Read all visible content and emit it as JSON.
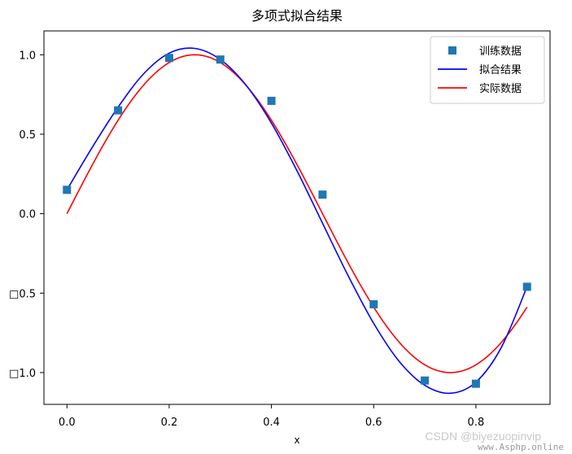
{
  "chart_data": {
    "type": "line",
    "title": "多项式拟合结果",
    "xlabel": "x",
    "ylabel": "",
    "xlim": [
      -0.045,
      0.945
    ],
    "ylim": [
      -1.2,
      1.15
    ],
    "xticks": [
      0.0,
      0.2,
      0.4,
      0.6,
      0.8
    ],
    "xtick_labels": [
      "0.0",
      "0.2",
      "0.4",
      "0.6",
      "0.8"
    ],
    "yticks": [
      1.0,
      0.5,
      0.0,
      -0.5,
      -1.0
    ],
    "ytick_labels": [
      "1.0",
      "0.5",
      "0.0",
      "□0.5",
      "□1.0"
    ],
    "legend_position": "top-right",
    "grid": false,
    "series": [
      {
        "name": "训练数据",
        "kind": "scatter",
        "marker": "square",
        "color": "#1f77b4",
        "x": [
          0.0,
          0.1,
          0.2,
          0.3,
          0.4,
          0.5,
          0.6,
          0.7,
          0.8,
          0.9
        ],
        "y": [
          0.15,
          0.65,
          0.98,
          0.97,
          0.71,
          0.12,
          -0.57,
          -1.05,
          -1.07,
          -0.46
        ]
      },
      {
        "name": "拟合结果",
        "kind": "line",
        "color": "#0000ff",
        "x": [
          0.0,
          0.05,
          0.1,
          0.15,
          0.2,
          0.25,
          0.3,
          0.35,
          0.4,
          0.45,
          0.5,
          0.55,
          0.6,
          0.65,
          0.7,
          0.75,
          0.8,
          0.85,
          0.9
        ],
        "y": [
          0.15,
          0.42,
          0.67,
          0.88,
          1.01,
          1.04,
          0.97,
          0.81,
          0.57,
          0.27,
          -0.06,
          -0.39,
          -0.69,
          -0.93,
          -1.08,
          -1.13,
          -1.06,
          -0.84,
          -0.46
        ]
      },
      {
        "name": "实际数据",
        "kind": "line",
        "color": "#ff0000",
        "fn": "sin(2*pi*x)",
        "x_range": [
          0.0,
          0.9
        ]
      }
    ]
  },
  "watermark": {
    "line1": "CSDN @biyezuopinvip",
    "line2": "www.Asphp.online"
  }
}
